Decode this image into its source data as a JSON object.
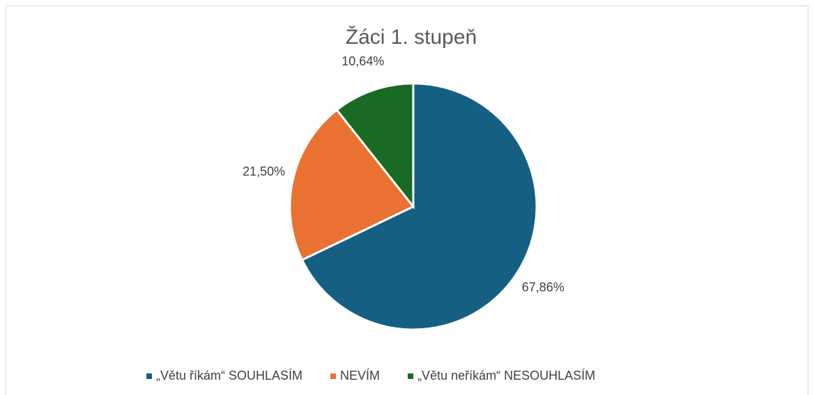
{
  "chart_data": {
    "type": "pie",
    "title": "Žáci 1. stupeň",
    "categories": [
      "„Větu říkám“ SOUHLASÍM",
      "NEVÍM",
      "„Větu neříkám“ NESOUHLASÍM"
    ],
    "values": [
      67.86,
      21.5,
      10.64
    ],
    "value_labels": [
      "67,86%",
      "21,50%",
      "10,64%"
    ],
    "colors": [
      "#156082",
      "#e97132",
      "#196b24"
    ],
    "legend": "bottom"
  }
}
